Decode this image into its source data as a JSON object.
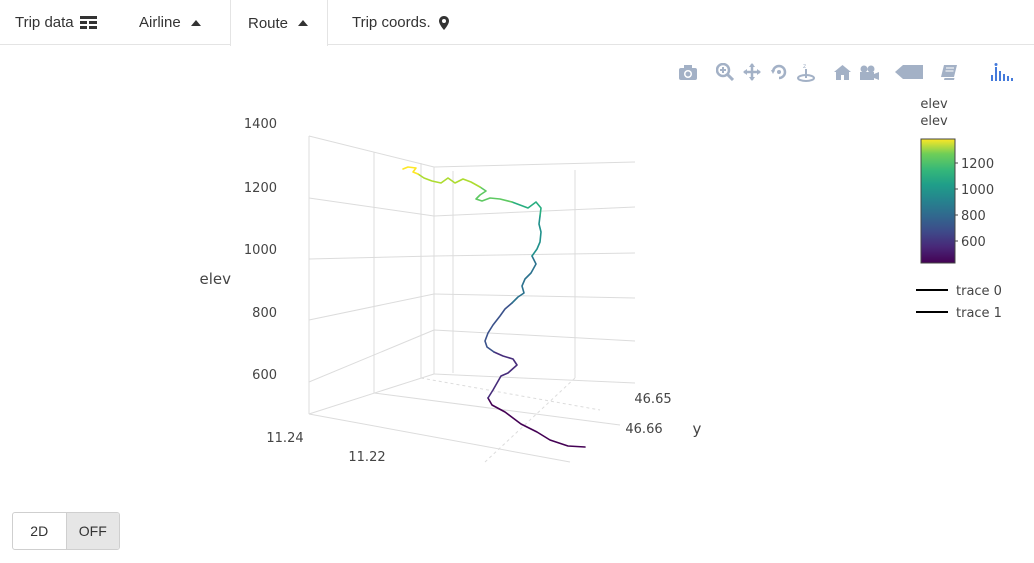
{
  "tabs": [
    {
      "label": "Trip data",
      "icon": "table-icon"
    },
    {
      "label": "Airline",
      "icon": "caret-up-icon"
    },
    {
      "label": "Route",
      "icon": "caret-up-icon"
    },
    {
      "label": "Trip coords.",
      "icon": "map-marker-icon"
    }
  ],
  "modebar": {
    "buttons": [
      "camera-icon",
      "zoom-icon",
      "pan-icon",
      "orbit-rotate-icon",
      "turntable-icon",
      "home-icon",
      "camera-view-icon",
      "hover-closest-icon",
      "hover-compare-icon",
      "plotly-logo-icon"
    ]
  },
  "chart_data": {
    "type": "line",
    "mode": "3d",
    "z_axis": {
      "title": "elev",
      "ticks": [
        "600",
        "800",
        "1000",
        "1200",
        "1400"
      ]
    },
    "x_axis": {
      "title": "",
      "ticks": [
        "11.24",
        "11.22"
      ]
    },
    "y_axis": {
      "title": "y",
      "ticks": [
        "46.65",
        "46.66"
      ]
    },
    "colorbar": {
      "title_line1": "elev",
      "title_line2": "elev",
      "ticks": [
        "1200",
        "1000",
        "800",
        "600"
      ],
      "colorscale": "Viridis",
      "range": [
        520,
        1370
      ]
    },
    "legend": [
      {
        "name": "trace 0",
        "color": "#000000"
      },
      {
        "name": "trace 1",
        "color": "#000000"
      }
    ],
    "series": [
      {
        "name": "trace 0",
        "elev_profile": [
          540,
          560,
          600,
          650,
          700,
          760,
          820,
          880,
          950,
          1010,
          1060,
          1100,
          1150,
          1180,
          1200,
          1230,
          1270,
          1300,
          1340,
          1360
        ]
      }
    ],
    "grid": true
  },
  "toggle": {
    "left": "2D",
    "right": "OFF"
  }
}
